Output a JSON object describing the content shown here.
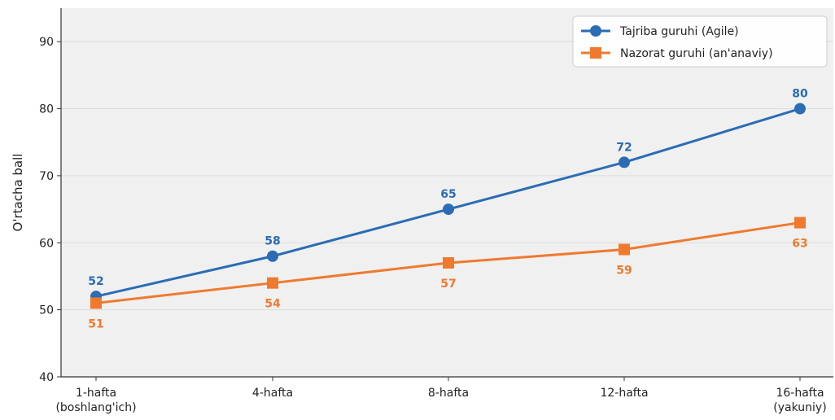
{
  "chart_data": {
    "type": "line",
    "categories": [
      "1-hafta\n(boshlang'ich)",
      "4-hafta",
      "8-hafta",
      "12-hafta",
      "16-hafta\n(yakuniy)"
    ],
    "series": [
      {
        "name": "Tajriba guruhi (Agile)",
        "values": [
          52,
          58,
          65,
          72,
          80
        ],
        "color": "#2b6cb5",
        "marker": "circle"
      },
      {
        "name": "Nazorat guruhi (an'anaviy)",
        "values": [
          51,
          54,
          57,
          59,
          63
        ],
        "color": "#ef7a2e",
        "marker": "square"
      }
    ],
    "ylabel": "O'rtacha ball",
    "xlabel": "",
    "ylim": [
      40,
      95
    ],
    "yticks": [
      40,
      50,
      60,
      70,
      80,
      90
    ],
    "grid": "horizontal",
    "legend_position": "top-right",
    "background_color": "#f0f0f0"
  }
}
